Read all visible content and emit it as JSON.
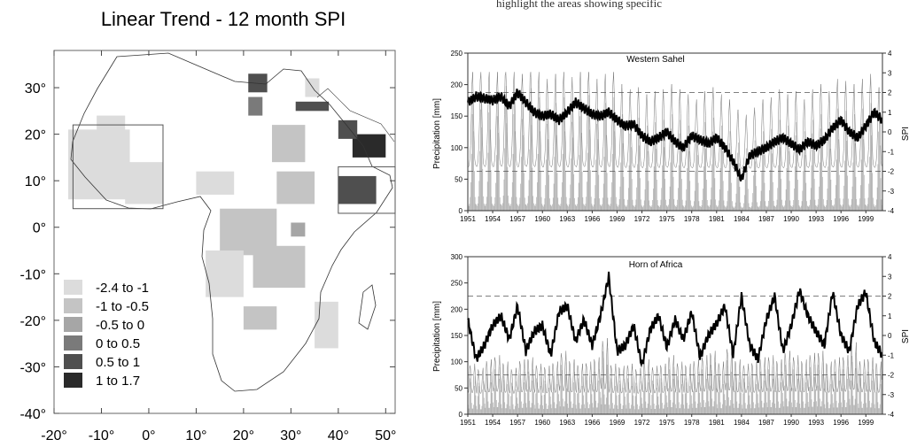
{
  "headline_fragment": "highlight the areas showing specific",
  "chart_data": [
    {
      "type": "heatmap",
      "title": "Linear Trend - 12 month SPI",
      "xlim": [
        -20,
        52
      ],
      "ylim": [
        -40,
        38
      ],
      "x_ticks": [
        "-20°",
        "-10°",
        "0°",
        "10°",
        "20°",
        "30°",
        "40°",
        "50°"
      ],
      "x_tick_values": [
        -20,
        -10,
        0,
        10,
        20,
        30,
        40,
        50
      ],
      "y_ticks": [
        "-40°",
        "-30°",
        "-20°",
        "-10°",
        "0°",
        "10°",
        "20°",
        "30°"
      ],
      "y_tick_values": [
        -40,
        -30,
        -20,
        -10,
        0,
        10,
        20,
        30
      ],
      "legend": [
        {
          "label": "-2.4 to -1",
          "color": "#dcdcdc"
        },
        {
          "label": "-1 to -0.5",
          "color": "#c4c4c4"
        },
        {
          "label": "-0.5 to 0",
          "color": "#a6a6a6"
        },
        {
          "label": "0 to 0.5",
          "color": "#7a7a7a"
        },
        {
          "label": "0.5 to 1",
          "color": "#4f4f4f"
        },
        {
          "label": "1 to 1.7",
          "color": "#2a2a2a"
        }
      ],
      "highlight_boxes": [
        {
          "region": "Western Sahel",
          "lon": [
            -16,
            3
          ],
          "lat": [
            4,
            22
          ]
        },
        {
          "region": "Horn of Africa",
          "lon": [
            40,
            52
          ],
          "lat": [
            3,
            13
          ]
        }
      ],
      "trend_regions": [
        {
          "class": 0,
          "lon": [
            -17,
            -4
          ],
          "lat": [
            6,
            21
          ]
        },
        {
          "class": 0,
          "lon": [
            -5,
            3
          ],
          "lat": [
            5,
            14
          ]
        },
        {
          "class": 0,
          "lon": [
            -11,
            -5
          ],
          "lat": [
            18,
            24
          ]
        },
        {
          "class": 0,
          "lon": [
            10,
            18
          ],
          "lat": [
            7,
            12
          ]
        },
        {
          "class": 1,
          "lon": [
            15,
            27
          ],
          "lat": [
            -6,
            4
          ]
        },
        {
          "class": 1,
          "lon": [
            22,
            33
          ],
          "lat": [
            -13,
            -4
          ]
        },
        {
          "class": 0,
          "lon": [
            12,
            20
          ],
          "lat": [
            -15,
            -5
          ]
        },
        {
          "class": 1,
          "lon": [
            27,
            35
          ],
          "lat": [
            5,
            12
          ]
        },
        {
          "class": 0,
          "lon": [
            33,
            36
          ],
          "lat": [
            28,
            32
          ]
        },
        {
          "class": 1,
          "lon": [
            26,
            33
          ],
          "lat": [
            14,
            22
          ]
        },
        {
          "class": 0,
          "lon": [
            35,
            40
          ],
          "lat": [
            -26,
            -16
          ]
        },
        {
          "class": 1,
          "lon": [
            20,
            27
          ],
          "lat": [
            -22,
            -17
          ]
        },
        {
          "class": 2,
          "lon": [
            30,
            33
          ],
          "lat": [
            -2,
            1
          ]
        },
        {
          "class": 4,
          "lon": [
            21,
            25
          ],
          "lat": [
            29,
            33
          ]
        },
        {
          "class": 3,
          "lon": [
            21,
            24
          ],
          "lat": [
            24,
            28
          ]
        },
        {
          "class": 4,
          "lon": [
            31,
            38
          ],
          "lat": [
            25,
            27
          ]
        },
        {
          "class": 5,
          "lon": [
            43,
            50
          ],
          "lat": [
            15,
            20
          ]
        },
        {
          "class": 4,
          "lon": [
            40,
            44
          ],
          "lat": [
            19,
            23
          ]
        },
        {
          "class": 4,
          "lon": [
            40,
            48
          ],
          "lat": [
            5,
            11
          ]
        }
      ]
    },
    {
      "type": "line",
      "title": "Western Sahel",
      "ylabel": "Precipitation [mm]",
      "y2label": "SPI",
      "ylim": [
        0,
        250
      ],
      "y_ticks": [
        "0",
        "50",
        "100",
        "150",
        "200",
        "250"
      ],
      "y_tick_values": [
        0,
        50,
        100,
        150,
        200,
        250
      ],
      "y2lim": [
        -4,
        4
      ],
      "y2_ticks": [
        "-4",
        "-3",
        "-2",
        "-1",
        "0",
        "1",
        "2",
        "3",
        "4"
      ],
      "y2_tick_values": [
        -4,
        -3,
        -2,
        -1,
        0,
        1,
        2,
        3,
        4
      ],
      "x_ticks": [
        "1951",
        "1954",
        "1957",
        "1960",
        "1963",
        "1966",
        "1969",
        "1972",
        "1975",
        "1978",
        "1981",
        "1984",
        "1987",
        "1990",
        "1993",
        "1996",
        "1999"
      ],
      "xlim": [
        1951,
        2001
      ],
      "dashed_spi_levels": [
        2,
        -2
      ],
      "series": [
        {
          "kind": "monthly precipitation bars",
          "seasonal_peak": 180,
          "year_scale": [
            1.0,
            1.05,
            1.02,
            0.98,
            1.1,
            1.0,
            0.95,
            1.08,
            1.0,
            0.9,
            0.95,
            1.0,
            0.92,
            0.98,
            1.02,
            0.9,
            0.95,
            1.0,
            0.85,
            0.8,
            0.82,
            0.75,
            0.78,
            0.8,
            0.85,
            0.8,
            0.75,
            0.7,
            0.78,
            0.82,
            0.75,
            0.7,
            0.6,
            0.55,
            0.62,
            0.7,
            0.72,
            0.8,
            0.75,
            0.78,
            0.7,
            0.8,
            0.85,
            0.78,
            0.9,
            0.88,
            0.85,
            0.9,
            0.95,
            0.82
          ]
        },
        {
          "kind": "12-month SPI",
          "years": [
            1951,
            1952,
            1953,
            1954,
            1955,
            1956,
            1957,
            1958,
            1959,
            1960,
            1961,
            1962,
            1963,
            1964,
            1965,
            1966,
            1967,
            1968,
            1969,
            1970,
            1971,
            1972,
            1973,
            1974,
            1975,
            1976,
            1977,
            1978,
            1979,
            1980,
            1981,
            1982,
            1983,
            1984,
            1985,
            1986,
            1987,
            1988,
            1989,
            1990,
            1991,
            1992,
            1993,
            1994,
            1995,
            1996,
            1997,
            1998,
            1999,
            2000,
            2001
          ],
          "values": [
            1.5,
            1.8,
            1.7,
            1.6,
            1.8,
            1.3,
            2.0,
            1.5,
            1.0,
            0.8,
            0.9,
            0.6,
            1.0,
            1.5,
            1.2,
            0.9,
            0.8,
            1.0,
            0.6,
            0.3,
            0.4,
            -0.2,
            -0.5,
            -0.3,
            0.0,
            -0.5,
            -0.8,
            -0.2,
            -0.4,
            -0.6,
            -0.3,
            -0.8,
            -1.5,
            -2.4,
            -1.2,
            -1.0,
            -0.8,
            -0.5,
            -0.3,
            -0.6,
            -0.9,
            -0.5,
            -0.7,
            -0.4,
            0.2,
            0.6,
            0.0,
            -0.3,
            0.3,
            1.0,
            0.6
          ]
        }
      ]
    },
    {
      "type": "line",
      "title": "Horn of Africa",
      "ylabel": "Precipitation [mm]",
      "y2label": "SPI",
      "ylim": [
        0,
        300
      ],
      "y_ticks": [
        "0",
        "50",
        "100",
        "150",
        "200",
        "250",
        "300"
      ],
      "y_tick_values": [
        0,
        50,
        100,
        150,
        200,
        250,
        300
      ],
      "y2lim": [
        -4,
        4
      ],
      "y2_ticks": [
        "-4",
        "-3",
        "-2",
        "-1",
        "0",
        "1",
        "2",
        "3",
        "4"
      ],
      "y2_tick_values": [
        -4,
        -3,
        -2,
        -1,
        0,
        1,
        2,
        3,
        4
      ],
      "x_ticks": [
        "1951",
        "1954",
        "1957",
        "1960",
        "1963",
        "1966",
        "1969",
        "1972",
        "1975",
        "1978",
        "1981",
        "1984",
        "1987",
        "1990",
        "1993",
        "1996",
        "1999"
      ],
      "xlim": [
        1951,
        2001
      ],
      "dashed_spi_levels": [
        2,
        -2
      ],
      "series": [
        {
          "kind": "monthly precipitation bars",
          "seasonal_peak": 90,
          "year_scale": [
            0.8,
            0.7,
            0.9,
            1.0,
            0.85,
            0.7,
            0.9,
            0.95,
            0.8,
            0.75,
            0.85,
            1.1,
            0.9,
            0.8,
            0.85,
            0.95,
            1.4,
            0.8,
            0.75,
            0.8,
            0.7,
            0.9,
            0.75,
            0.8,
            1.0,
            0.85,
            0.8,
            0.9,
            1.0,
            1.1,
            0.85,
            1.2,
            0.9,
            0.8,
            0.85,
            0.95,
            1.0,
            0.9,
            1.1,
            1.0,
            0.9,
            1.05,
            1.1,
            0.85,
            0.95,
            1.0,
            1.3,
            0.9,
            0.95,
            0.85
          ]
        },
        {
          "kind": "12-month SPI",
          "years": [
            1951,
            1952,
            1953,
            1954,
            1955,
            1956,
            1957,
            1958,
            1959,
            1960,
            1961,
            1962,
            1963,
            1964,
            1965,
            1966,
            1967,
            1968,
            1969,
            1970,
            1971,
            1972,
            1973,
            1974,
            1975,
            1976,
            1977,
            1978,
            1979,
            1980,
            1981,
            1982,
            1983,
            1984,
            1985,
            1986,
            1987,
            1988,
            1989,
            1990,
            1991,
            1992,
            1993,
            1994,
            1995,
            1996,
            1997,
            1998,
            1999,
            2000,
            2001
          ],
          "values": [
            0.8,
            -1.2,
            -0.5,
            0.5,
            1.0,
            -0.2,
            1.5,
            -0.8,
            0.2,
            0.5,
            -1.0,
            1.2,
            1.5,
            -0.3,
            0.8,
            -0.5,
            1.0,
            3.0,
            -0.8,
            -0.5,
            0.5,
            -1.5,
            0.3,
            1.0,
            -0.6,
            0.8,
            -0.2,
            1.2,
            -1.1,
            0.0,
            0.6,
            1.5,
            -1.0,
            2.0,
            -0.5,
            -1.2,
            0.8,
            2.0,
            -0.8,
            0.5,
            2.3,
            1.0,
            0.2,
            -0.5,
            2.2,
            0.0,
            -0.8,
            1.5,
            2.2,
            -0.3,
            -1.0
          ]
        }
      ]
    }
  ]
}
